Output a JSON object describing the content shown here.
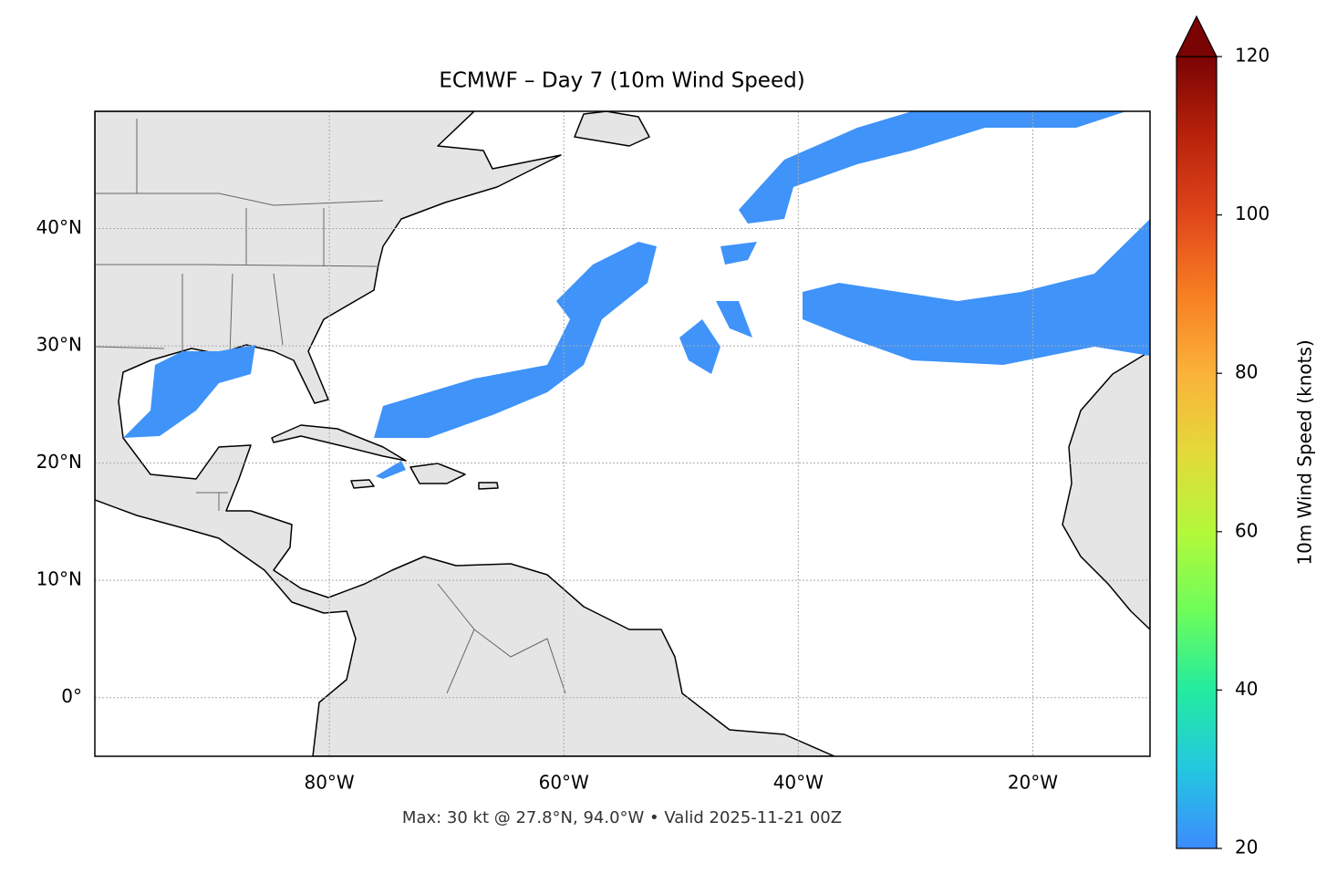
{
  "chart_data": {
    "type": "map",
    "title": "ECMWF – Day 7 (10m Wind Speed)",
    "footer": "Max: 30 kt @ 27.8°N, 94.0°W • Valid 2025-11-21 00Z",
    "xlim": [
      -100,
      -10
    ],
    "ylim": [
      -5,
      50
    ],
    "xticks": [
      {
        "value": -80,
        "label": "80°W"
      },
      {
        "value": -60,
        "label": "60°W"
      },
      {
        "value": -40,
        "label": "40°W"
      },
      {
        "value": -20,
        "label": "20°W"
      }
    ],
    "yticks": [
      {
        "value": 0,
        "label": "0°"
      },
      {
        "value": 10,
        "label": "10°N"
      },
      {
        "value": 20,
        "label": "20°N"
      },
      {
        "value": 30,
        "label": "30°N"
      },
      {
        "value": 40,
        "label": "40°N"
      }
    ],
    "grid": true,
    "colorbar": {
      "label": "10m Wind Speed (knots)",
      "clim": [
        20,
        120
      ],
      "ticks": [
        20,
        40,
        60,
        80,
        100,
        120
      ],
      "colormap": [
        "#3d8bfd",
        "#23c7e0",
        "#23eba0",
        "#6efd5a",
        "#b4f83a",
        "#e4d93a",
        "#fbb23a",
        "#f77e22",
        "#e0461a",
        "#b8220b",
        "#7a0403"
      ]
    }
  }
}
